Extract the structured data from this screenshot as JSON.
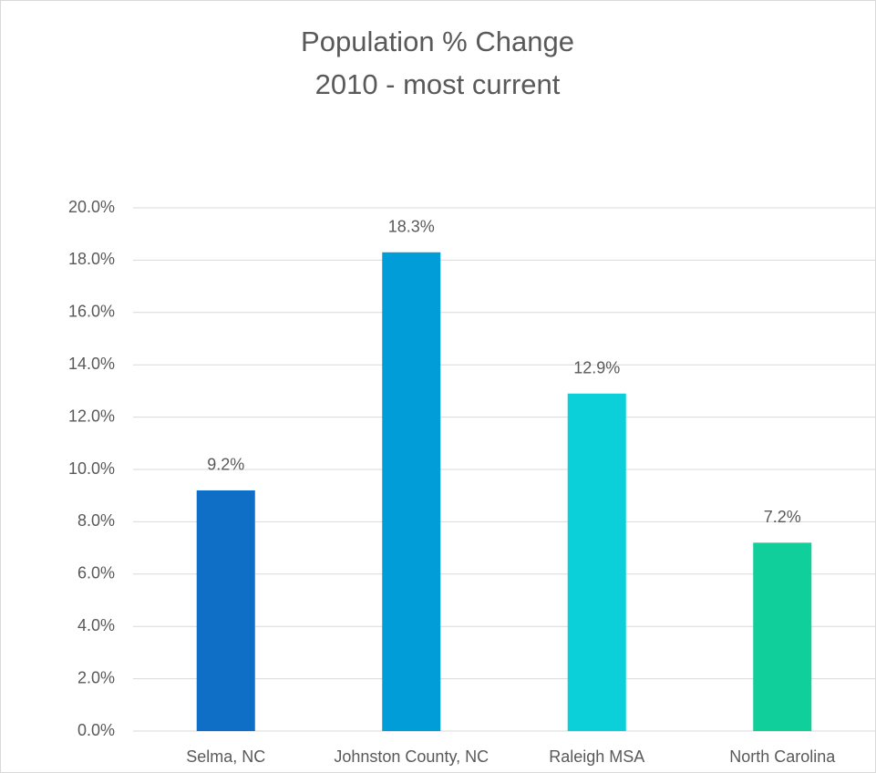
{
  "chart_data": {
    "type": "bar",
    "title": "Population % Change",
    "subtitle": "2010 - most current",
    "categories": [
      "Selma, NC",
      "Johnston County, NC",
      "Raleigh MSA",
      "North Carolina"
    ],
    "values": [
      9.2,
      18.3,
      12.9,
      7.2
    ],
    "value_labels": [
      "9.2%",
      "18.3%",
      "12.9%",
      "7.2%"
    ],
    "colors": [
      "#0f6fc6",
      "#009dd9",
      "#0bd0d9",
      "#10cf9b"
    ],
    "ylim": [
      0,
      20
    ],
    "yticks": [
      {
        "value": 0,
        "label": "0.0%"
      },
      {
        "value": 2,
        "label": "2.0%"
      },
      {
        "value": 4,
        "label": "4.0%"
      },
      {
        "value": 6,
        "label": "6.0%"
      },
      {
        "value": 8,
        "label": "8.0%"
      },
      {
        "value": 10,
        "label": "10.0%"
      },
      {
        "value": 12,
        "label": "12.0%"
      },
      {
        "value": 14,
        "label": "14.0%"
      },
      {
        "value": 16,
        "label": "16.0%"
      },
      {
        "value": 18,
        "label": "18.0%"
      },
      {
        "value": 20,
        "label": "20.0%"
      }
    ],
    "grid": true
  }
}
